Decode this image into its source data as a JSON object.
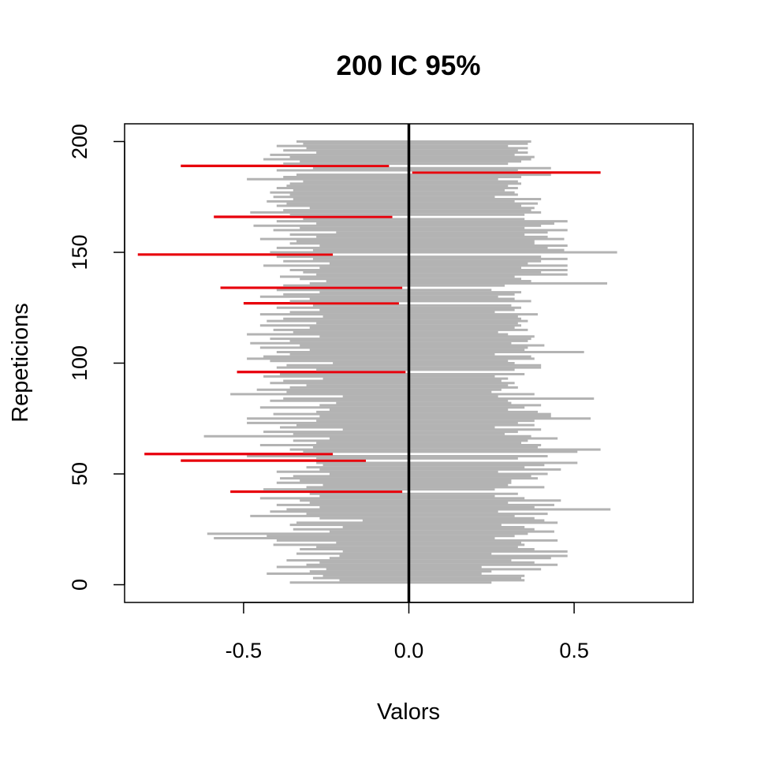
{
  "chart_data": {
    "type": "interval",
    "title": "200 IC 95%",
    "xlabel": "Valors",
    "ylabel": "Repeticions",
    "xlim": [
      -0.86,
      0.86
    ],
    "ylim": [
      -8,
      208
    ],
    "x_ticks": [
      -0.5,
      0.0,
      0.5
    ],
    "y_ticks": [
      0,
      50,
      100,
      150,
      200
    ],
    "reference_x": 0.0,
    "colors": {
      "covers": "#b3b3b3",
      "misses": "#e8000b",
      "reference": "#000000"
    },
    "intervals": [
      [
        1,
        -0.36,
        0.25
      ],
      [
        2,
        -0.21,
        0.35
      ],
      [
        3,
        -0.29,
        0.34
      ],
      [
        4,
        -0.26,
        0.35
      ],
      [
        5,
        -0.43,
        0.22
      ],
      [
        6,
        -0.3,
        0.25
      ],
      [
        7,
        -0.25,
        0.4
      ],
      [
        8,
        -0.4,
        0.22
      ],
      [
        9,
        -0.31,
        0.45
      ],
      [
        10,
        -0.27,
        0.38
      ],
      [
        11,
        -0.37,
        0.31
      ],
      [
        12,
        -0.24,
        0.43
      ],
      [
        13,
        -0.21,
        0.48
      ],
      [
        14,
        -0.34,
        0.25
      ],
      [
        15,
        -0.2,
        0.48
      ],
      [
        16,
        -0.33,
        0.38
      ],
      [
        17,
        -0.28,
        0.33
      ],
      [
        18,
        -0.41,
        0.35
      ],
      [
        19,
        -0.22,
        0.34
      ],
      [
        20,
        -0.4,
        0.45
      ],
      [
        21,
        -0.59,
        0.26
      ],
      [
        22,
        -0.43,
        0.32
      ],
      [
        23,
        -0.61,
        0.36
      ],
      [
        24,
        -0.24,
        0.44
      ],
      [
        25,
        -0.35,
        0.38
      ],
      [
        26,
        -0.2,
        0.35
      ],
      [
        27,
        -0.36,
        0.28
      ],
      [
        28,
        -0.34,
        0.45
      ],
      [
        29,
        -0.14,
        0.41
      ],
      [
        30,
        -0.27,
        0.38
      ],
      [
        31,
        -0.48,
        0.32
      ],
      [
        32,
        -0.31,
        0.42
      ],
      [
        33,
        -0.42,
        0.27
      ],
      [
        34,
        -0.37,
        0.61
      ],
      [
        35,
        -0.27,
        0.38
      ],
      [
        36,
        -0.4,
        0.44
      ],
      [
        37,
        -0.3,
        0.3
      ],
      [
        38,
        -0.33,
        0.46
      ],
      [
        39,
        -0.45,
        0.35
      ],
      [
        40,
        -0.27,
        0.26
      ],
      [
        41,
        -0.3,
        0.33
      ],
      [
        42,
        -0.54,
        -0.02
      ],
      [
        43,
        -0.44,
        0.26
      ],
      [
        44,
        -0.31,
        0.41
      ],
      [
        45,
        -0.26,
        0.3
      ],
      [
        46,
        -0.4,
        0.31
      ],
      [
        47,
        -0.33,
        0.31
      ],
      [
        48,
        -0.39,
        0.39
      ],
      [
        49,
        -0.35,
        0.37
      ],
      [
        50,
        -0.24,
        0.42
      ],
      [
        51,
        -0.4,
        0.27
      ],
      [
        52,
        -0.27,
        0.46
      ],
      [
        53,
        -0.31,
        0.35
      ],
      [
        54,
        -0.26,
        0.41
      ],
      [
        55,
        -0.28,
        0.51
      ],
      [
        56,
        -0.69,
        -0.13
      ],
      [
        57,
        -0.28,
        0.33
      ],
      [
        58,
        -0.49,
        0.42
      ],
      [
        59,
        -0.8,
        -0.23
      ],
      [
        60,
        -0.32,
        0.51
      ],
      [
        61,
        -0.36,
        0.58
      ],
      [
        62,
        -0.29,
        0.39
      ],
      [
        63,
        -0.45,
        0.4
      ],
      [
        64,
        -0.28,
        0.34
      ],
      [
        65,
        -0.35,
        0.36
      ],
      [
        66,
        -0.24,
        0.45
      ],
      [
        67,
        -0.62,
        0.37
      ],
      [
        68,
        -0.35,
        0.29
      ],
      [
        69,
        -0.44,
        0.33
      ],
      [
        70,
        -0.2,
        0.4
      ],
      [
        71,
        -0.39,
        0.26
      ],
      [
        72,
        -0.34,
        0.38
      ],
      [
        73,
        -0.49,
        0.33
      ],
      [
        74,
        -0.28,
        0.38
      ],
      [
        75,
        -0.49,
        0.55
      ],
      [
        76,
        -0.27,
        0.43
      ],
      [
        77,
        -0.41,
        0.43
      ],
      [
        78,
        -0.28,
        0.39
      ],
      [
        79,
        -0.24,
        0.3
      ],
      [
        80,
        -0.45,
        0.35
      ],
      [
        81,
        -0.27,
        0.4
      ],
      [
        82,
        -0.22,
        0.31
      ],
      [
        83,
        -0.42,
        0.3
      ],
      [
        84,
        -0.38,
        0.56
      ],
      [
        85,
        -0.2,
        0.27
      ],
      [
        86,
        -0.54,
        0.38
      ],
      [
        87,
        -0.37,
        0.25
      ],
      [
        88,
        -0.46,
        0.28
      ],
      [
        89,
        -0.36,
        0.33
      ],
      [
        90,
        -0.31,
        0.3
      ],
      [
        91,
        -0.42,
        0.32
      ],
      [
        92,
        -0.38,
        0.28
      ],
      [
        93,
        -0.26,
        0.3
      ],
      [
        94,
        -0.44,
        0.26
      ],
      [
        95,
        -0.39,
        0.35
      ],
      [
        96,
        -0.52,
        -0.01
      ],
      [
        97,
        -0.28,
        0.32
      ],
      [
        98,
        -0.4,
        0.4
      ],
      [
        99,
        -0.37,
        0.4
      ],
      [
        100,
        -0.23,
        0.32
      ],
      [
        101,
        -0.42,
        0.3
      ],
      [
        102,
        -0.49,
        0.38
      ],
      [
        103,
        -0.44,
        0.37
      ],
      [
        104,
        -0.36,
        0.26
      ],
      [
        105,
        -0.4,
        0.53
      ],
      [
        106,
        -0.3,
        0.35
      ],
      [
        107,
        -0.45,
        0.36
      ],
      [
        108,
        -0.33,
        0.41
      ],
      [
        109,
        -0.48,
        0.31
      ],
      [
        110,
        -0.36,
        0.36
      ],
      [
        111,
        -0.42,
        0.37
      ],
      [
        112,
        -0.27,
        0.38
      ],
      [
        113,
        -0.49,
        0.3
      ],
      [
        114,
        -0.35,
        0.27
      ],
      [
        115,
        -0.41,
        0.36
      ],
      [
        116,
        -0.3,
        0.32
      ],
      [
        117,
        -0.45,
        0.34
      ],
      [
        118,
        -0.28,
        0.33
      ],
      [
        119,
        -0.43,
        0.36
      ],
      [
        120,
        -0.38,
        0.34
      ],
      [
        121,
        -0.26,
        0.33
      ],
      [
        122,
        -0.45,
        0.39
      ],
      [
        123,
        -0.36,
        0.26
      ],
      [
        124,
        -0.27,
        0.32
      ],
      [
        125,
        -0.4,
        0.34
      ],
      [
        126,
        -0.29,
        0.31
      ],
      [
        127,
        -0.5,
        -0.03
      ],
      [
        128,
        -0.36,
        0.37
      ],
      [
        129,
        -0.3,
        0.32
      ],
      [
        130,
        -0.45,
        0.27
      ],
      [
        131,
        -0.38,
        0.32
      ],
      [
        132,
        -0.27,
        0.34
      ],
      [
        133,
        -0.4,
        0.25
      ],
      [
        134,
        -0.57,
        -0.02
      ],
      [
        135,
        -0.38,
        0.29
      ],
      [
        136,
        -0.3,
        0.6
      ],
      [
        137,
        -0.25,
        0.37
      ],
      [
        138,
        -0.33,
        0.34
      ],
      [
        139,
        -0.39,
        0.32
      ],
      [
        140,
        -0.28,
        0.48
      ],
      [
        141,
        -0.32,
        0.4
      ],
      [
        142,
        -0.36,
        0.48
      ],
      [
        143,
        -0.27,
        0.34
      ],
      [
        144,
        -0.44,
        0.48
      ],
      [
        145,
        -0.24,
        0.36
      ],
      [
        146,
        -0.38,
        0.4
      ],
      [
        147,
        -0.29,
        0.48
      ],
      [
        148,
        -0.4,
        0.4
      ],
      [
        149,
        -0.82,
        -0.23
      ],
      [
        150,
        -0.42,
        0.63
      ],
      [
        151,
        -0.29,
        0.47
      ],
      [
        152,
        -0.4,
        0.42
      ],
      [
        153,
        -0.27,
        0.48
      ],
      [
        154,
        -0.36,
        0.38
      ],
      [
        155,
        -0.34,
        0.38
      ],
      [
        156,
        -0.45,
        0.47
      ],
      [
        157,
        -0.28,
        0.42
      ],
      [
        158,
        -0.36,
        0.35
      ],
      [
        159,
        -0.22,
        0.42
      ],
      [
        160,
        -0.41,
        0.48
      ],
      [
        161,
        -0.33,
        0.35
      ],
      [
        162,
        -0.47,
        0.4
      ],
      [
        163,
        -0.28,
        0.44
      ],
      [
        164,
        -0.4,
        0.48
      ],
      [
        165,
        -0.32,
        0.35
      ],
      [
        166,
        -0.59,
        -0.05
      ],
      [
        167,
        -0.36,
        0.35
      ],
      [
        168,
        -0.48,
        0.4
      ],
      [
        169,
        -0.38,
        0.37
      ],
      [
        170,
        -0.3,
        0.38
      ],
      [
        171,
        -0.4,
        0.34
      ],
      [
        172,
        -0.37,
        0.39
      ],
      [
        173,
        -0.43,
        0.32
      ],
      [
        174,
        -0.35,
        0.4
      ],
      [
        175,
        -0.41,
        0.26
      ],
      [
        176,
        -0.36,
        0.33
      ],
      [
        177,
        -0.42,
        0.32
      ],
      [
        178,
        -0.35,
        0.29
      ],
      [
        179,
        -0.4,
        0.33
      ],
      [
        180,
        -0.37,
        0.3
      ],
      [
        181,
        -0.36,
        0.34
      ],
      [
        182,
        -0.32,
        0.33
      ],
      [
        183,
        -0.49,
        0.27
      ],
      [
        184,
        -0.38,
        0.34
      ],
      [
        185,
        -0.34,
        0.43
      ],
      [
        186,
        0.01,
        0.58
      ],
      [
        187,
        -0.4,
        0.33
      ],
      [
        188,
        -0.29,
        0.43
      ],
      [
        189,
        -0.69,
        -0.06
      ],
      [
        190,
        -0.38,
        0.3
      ],
      [
        191,
        -0.33,
        0.34
      ],
      [
        192,
        -0.44,
        0.37
      ],
      [
        193,
        -0.36,
        0.38
      ],
      [
        194,
        -0.42,
        0.32
      ],
      [
        195,
        -0.28,
        0.36
      ],
      [
        196,
        -0.38,
        0.33
      ],
      [
        197,
        -0.31,
        0.36
      ],
      [
        198,
        -0.4,
        0.3
      ],
      [
        199,
        -0.32,
        0.36
      ],
      [
        200,
        -0.34,
        0.37
      ]
    ]
  }
}
